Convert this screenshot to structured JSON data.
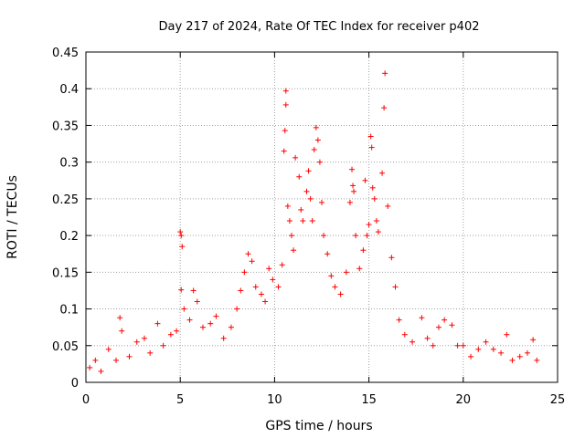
{
  "chart_data": {
    "type": "scatter",
    "title": "Day 217 of 2024, Rate Of TEC Index for receiver p402",
    "xlabel": "GPS time / hours",
    "ylabel": "ROTI / TECUs",
    "xlim": [
      0,
      25
    ],
    "ylim": [
      0,
      0.45
    ],
    "xticks": [
      "0",
      "5",
      "10",
      "15",
      "20",
      "25"
    ],
    "yticks": [
      "0",
      "0.05",
      "0.1",
      "0.15",
      "0.2",
      "0.25",
      "0.3",
      "0.35",
      "0.4",
      "0.45"
    ],
    "grid": true,
    "marker": "+",
    "color": "#ff0000",
    "series": [
      {
        "points": [
          [
            0.2,
            0.02
          ],
          [
            0.5,
            0.03
          ],
          [
            0.8,
            0.015
          ],
          [
            1.2,
            0.045
          ],
          [
            1.6,
            0.03
          ],
          [
            1.8,
            0.088
          ],
          [
            1.9,
            0.07
          ],
          [
            2.3,
            0.035
          ],
          [
            2.7,
            0.055
          ],
          [
            3.1,
            0.06
          ],
          [
            3.4,
            0.04
          ],
          [
            3.8,
            0.08
          ],
          [
            4.1,
            0.05
          ],
          [
            4.5,
            0.065
          ],
          [
            4.8,
            0.07
          ],
          [
            5.0,
            0.205
          ],
          [
            5.05,
            0.2
          ],
          [
            5.1,
            0.185
          ],
          [
            5.05,
            0.126
          ],
          [
            5.2,
            0.1
          ],
          [
            5.5,
            0.085
          ],
          [
            5.7,
            0.125
          ],
          [
            5.9,
            0.11
          ],
          [
            6.2,
            0.075
          ],
          [
            6.6,
            0.08
          ],
          [
            6.9,
            0.09
          ],
          [
            7.3,
            0.06
          ],
          [
            7.7,
            0.075
          ],
          [
            8.0,
            0.1
          ],
          [
            8.2,
            0.125
          ],
          [
            8.4,
            0.15
          ],
          [
            8.6,
            0.175
          ],
          [
            8.8,
            0.165
          ],
          [
            9.0,
            0.13
          ],
          [
            9.3,
            0.12
          ],
          [
            9.5,
            0.11
          ],
          [
            9.7,
            0.155
          ],
          [
            9.9,
            0.14
          ],
          [
            10.2,
            0.13
          ],
          [
            10.4,
            0.16
          ],
          [
            10.5,
            0.315
          ],
          [
            10.55,
            0.343
          ],
          [
            10.6,
            0.378
          ],
          [
            10.6,
            0.397
          ],
          [
            10.7,
            0.24
          ],
          [
            10.8,
            0.22
          ],
          [
            10.9,
            0.2
          ],
          [
            11.0,
            0.18
          ],
          [
            11.1,
            0.306
          ],
          [
            11.3,
            0.28
          ],
          [
            11.4,
            0.235
          ],
          [
            11.5,
            0.22
          ],
          [
            11.7,
            0.26
          ],
          [
            11.8,
            0.288
          ],
          [
            11.9,
            0.25
          ],
          [
            12.0,
            0.22
          ],
          [
            12.1,
            0.317
          ],
          [
            12.2,
            0.347
          ],
          [
            12.3,
            0.33
          ],
          [
            12.4,
            0.3
          ],
          [
            12.5,
            0.245
          ],
          [
            12.6,
            0.2
          ],
          [
            12.8,
            0.175
          ],
          [
            13.0,
            0.145
          ],
          [
            13.2,
            0.13
          ],
          [
            13.5,
            0.12
          ],
          [
            13.8,
            0.15
          ],
          [
            14.0,
            0.245
          ],
          [
            14.1,
            0.29
          ],
          [
            14.15,
            0.268
          ],
          [
            14.2,
            0.26
          ],
          [
            14.3,
            0.2
          ],
          [
            14.5,
            0.155
          ],
          [
            14.7,
            0.18
          ],
          [
            14.8,
            0.275
          ],
          [
            14.9,
            0.2
          ],
          [
            15.0,
            0.215
          ],
          [
            15.1,
            0.335
          ],
          [
            15.15,
            0.32
          ],
          [
            15.2,
            0.265
          ],
          [
            15.3,
            0.25
          ],
          [
            15.4,
            0.22
          ],
          [
            15.5,
            0.205
          ],
          [
            15.7,
            0.285
          ],
          [
            15.8,
            0.374
          ],
          [
            15.85,
            0.421
          ],
          [
            16.0,
            0.24
          ],
          [
            16.2,
            0.17
          ],
          [
            16.4,
            0.13
          ],
          [
            16.6,
            0.085
          ],
          [
            16.9,
            0.065
          ],
          [
            17.3,
            0.055
          ],
          [
            17.8,
            0.088
          ],
          [
            18.1,
            0.06
          ],
          [
            18.4,
            0.05
          ],
          [
            18.7,
            0.075
          ],
          [
            19.0,
            0.085
          ],
          [
            19.4,
            0.078
          ],
          [
            19.7,
            0.05
          ],
          [
            20.0,
            0.05
          ],
          [
            20.4,
            0.035
          ],
          [
            20.8,
            0.045
          ],
          [
            21.2,
            0.055
          ],
          [
            21.6,
            0.045
          ],
          [
            22.0,
            0.04
          ],
          [
            22.3,
            0.065
          ],
          [
            22.6,
            0.03
          ],
          [
            23.0,
            0.035
          ],
          [
            23.4,
            0.04
          ],
          [
            23.7,
            0.058
          ],
          [
            23.9,
            0.03
          ]
        ]
      }
    ]
  }
}
